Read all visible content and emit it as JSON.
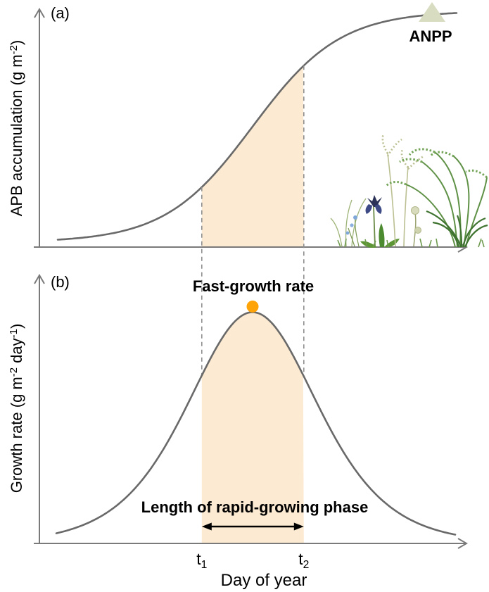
{
  "figure": {
    "panel_a": {
      "label": "(a)",
      "ylabel_parts": [
        {
          "t": "APB accumulation (g m"
        },
        {
          "t": "-2",
          "sup": true
        },
        {
          "t": ")"
        }
      ],
      "annotation": "ANPP"
    },
    "panel_b": {
      "label": "(b)",
      "ylabel_parts": [
        {
          "t": "Growth rate (g m"
        },
        {
          "t": "-2",
          "sup": true
        },
        {
          "t": " day"
        },
        {
          "t": "-1",
          "sup": true
        },
        {
          "t": ")"
        }
      ],
      "xlabel": "Day of year",
      "peak_label": "Fast-growth rate",
      "arrow_label": "Length of rapid-growing phase",
      "t1_parts": [
        {
          "t": "t"
        },
        {
          "t": "1",
          "sub": true
        }
      ],
      "t2_parts": [
        {
          "t": "t"
        },
        {
          "t": "2",
          "sub": true
        }
      ]
    },
    "colors": {
      "shade": "#FCEBD2",
      "curve": "#696969",
      "axis": "#7A7A7A",
      "dashed": "#8F8F8F",
      "dot": "#FFA408",
      "triangle": "#D8DCC0",
      "arrow": "#000000"
    }
  },
  "chart_data": [
    {
      "panel": "a",
      "type": "line",
      "curve_family": "logistic",
      "ylabel": "APB accumulation (g m-2)",
      "xlabel": "Day of year",
      "numeric_ticks": false,
      "logistic": {
        "midpoint_frac": 0.4975,
        "steepness": 9.8,
        "amplitude_frac": 0.97,
        "baseline_frac": 0.02
      },
      "t1_frac": 0.379,
      "t2_frac": 0.617,
      "shaded_interval": [
        "t1",
        "t2"
      ],
      "shaded_meaning": "accumulation during rapid-growing phase",
      "asymptote_annotation": {
        "label": "ANPP",
        "marker": "triangle",
        "x_frac": 0.915,
        "y_frac": 0.99
      }
    },
    {
      "panel": "b",
      "type": "line",
      "curve_family": "logistic-derivative-bell",
      "ylabel": "Growth rate (g m-2 day-1)",
      "xlabel": "Day of year",
      "bell": {
        "center_frac": 0.4975,
        "steepness": 9.8,
        "amplitude_frac": 0.86
      },
      "t1_frac": 0.379,
      "t2_frac": 0.617,
      "x_ticks": [
        {
          "label": "t1",
          "frac": 0.379
        },
        {
          "label": "t2",
          "frac": 0.617
        }
      ],
      "peak_annotation": {
        "label": "Fast-growth rate",
        "marker": "orange-dot",
        "x_frac": 0.4975,
        "y_frac": 1.0
      },
      "interval_annotation": {
        "label": "Length of rapid-growing phase",
        "marker": "double-arrow",
        "from": "t1",
        "to": "t2"
      }
    }
  ]
}
